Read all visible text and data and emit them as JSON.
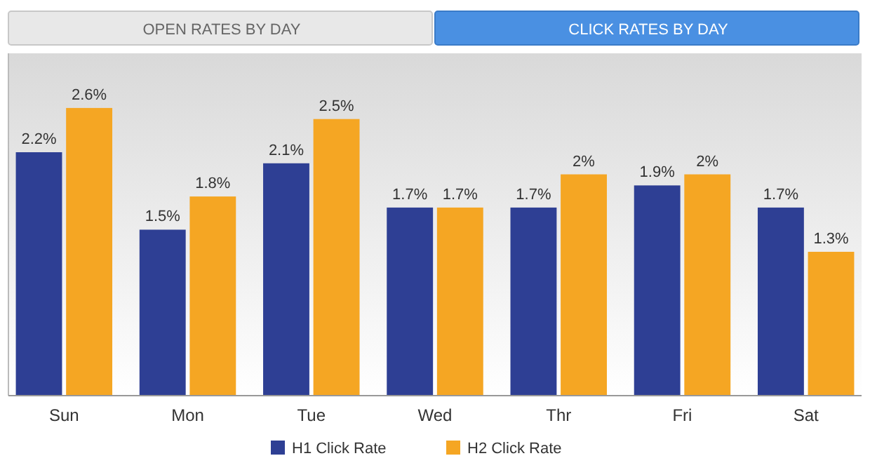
{
  "chart_data": {
    "type": "bar",
    "categories": [
      "Sun",
      "Mon",
      "Tue",
      "Wed",
      "Thr",
      "Fri",
      "Sat"
    ],
    "series": [
      {
        "name": "H1 Click Rate",
        "color": "#2e3f94",
        "values": [
          2.2,
          1.5,
          2.1,
          1.7,
          1.7,
          1.9,
          1.7
        ],
        "value_labels": [
          "2.2%",
          "1.5%",
          "2.1%",
          "1.7%",
          "1.7%",
          "1.9%",
          "1.7%"
        ]
      },
      {
        "name": "H2 Click Rate",
        "color": "#f5a623",
        "values": [
          2.6,
          1.8,
          2.5,
          1.7,
          2,
          2,
          1.3
        ],
        "value_labels": [
          "2.6%",
          "1.8%",
          "2.5%",
          "1.7%",
          "2%",
          "2%",
          "1.3%"
        ]
      }
    ],
    "tick_labels": "x",
    "legend": "bottom",
    "annotations": [
      "OPEN RATES BY DAY",
      "CLICK RATES BY DAY"
    ]
  }
}
